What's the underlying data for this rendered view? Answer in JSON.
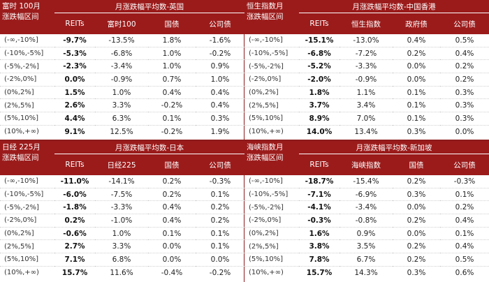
{
  "panels": [
    {
      "title": "月涨跌幅平均数-英国",
      "corner": [
        "富时 100月",
        "涨跌幅区间"
      ],
      "columns": [
        "REITs",
        "富时100",
        "国债",
        "公司债"
      ],
      "rows": [
        [
          "(-∞,-10%]",
          "-9.7%",
          "-13.5%",
          "1.8%",
          "-1.6%"
        ],
        [
          "(-10%,-5%]",
          "-5.3%",
          "-6.8%",
          "1.0%",
          "-0.2%"
        ],
        [
          "(-5%,-2%]",
          "-2.3%",
          "-3.4%",
          "1.0%",
          "0.9%"
        ],
        [
          "(-2%,0%]",
          "0.0%",
          "-0.9%",
          "0.7%",
          "1.0%"
        ],
        [
          "(0%,2%]",
          "1.5%",
          "1.0%",
          "0.4%",
          "0.4%"
        ],
        [
          "(2%,5%]",
          "2.6%",
          "3.3%",
          "-0.2%",
          "0.4%"
        ],
        [
          "(5%,10%]",
          "4.4%",
          "6.3%",
          "0.1%",
          "0.3%"
        ],
        [
          "(10%,+∞)",
          "9.1%",
          "12.5%",
          "-0.2%",
          "1.9%"
        ]
      ]
    },
    {
      "title": "月涨跌幅平均数-中国香港",
      "corner": [
        "恒生指数月",
        "涨跌幅区间"
      ],
      "columns": [
        "REITs",
        "恒生指数",
        "政府债",
        "公司债"
      ],
      "rows": [
        [
          "(-∞,-10%]",
          "-15.1%",
          "-13.0%",
          "0.4%",
          "0.5%"
        ],
        [
          "(-10%,-5%]",
          "-6.8%",
          "-7.2%",
          "0.2%",
          "0.4%"
        ],
        [
          "(-5%,-2%]",
          "-5.2%",
          "-3.3%",
          "0.0%",
          "0.2%"
        ],
        [
          "(-2%,0%]",
          "-2.0%",
          "-0.9%",
          "0.0%",
          "0.2%"
        ],
        [
          "(0%,2%]",
          "1.8%",
          "1.1%",
          "0.1%",
          "0.3%"
        ],
        [
          "(2%,5%]",
          "3.7%",
          "3.4%",
          "0.1%",
          "0.3%"
        ],
        [
          "(5%,10%]",
          "8.9%",
          "7.0%",
          "0.1%",
          "0.3%"
        ],
        [
          "(10%,+∞)",
          "14.0%",
          "13.4%",
          "0.3%",
          "0.0%"
        ]
      ]
    },
    {
      "title": "月涨跌幅平均数-日本",
      "corner": [
        "日经 225月",
        "涨跌幅区间"
      ],
      "columns": [
        "REITs",
        "日经225",
        "国债",
        "公司债"
      ],
      "rows": [
        [
          "(-∞,-10%]",
          "-11.0%",
          "-14.1%",
          "0.2%",
          "-0.3%"
        ],
        [
          "(-10%,-5%]",
          "-6.0%",
          "-7.5%",
          "0.2%",
          "0.1%"
        ],
        [
          "(-5%,-2%]",
          "-1.8%",
          "-3.3%",
          "0.4%",
          "0.2%"
        ],
        [
          "(-2%,0%]",
          "0.2%",
          "-1.0%",
          "0.4%",
          "0.2%"
        ],
        [
          "(0%,2%]",
          "-0.6%",
          "1.0%",
          "0.1%",
          "0.1%"
        ],
        [
          "(2%,5%]",
          "2.7%",
          "3.3%",
          "0.0%",
          "0.1%"
        ],
        [
          "(5%,10%]",
          "7.1%",
          "6.8%",
          "0.0%",
          "0.0%"
        ],
        [
          "(10%,+∞)",
          "15.7%",
          "11.6%",
          "-0.4%",
          "-0.2%"
        ]
      ]
    },
    {
      "title": "月涨跌幅平均数-新加坡",
      "corner": [
        "海峡指数月",
        "涨跌幅区间"
      ],
      "columns": [
        "REITs",
        "海峡指数",
        "国债",
        "公司债"
      ],
      "rows": [
        [
          "(-∞,-10%]",
          "-18.7%",
          "-15.4%",
          "0.2%",
          "-0.3%"
        ],
        [
          "(-10%,-5%]",
          "-7.1%",
          "-6.9%",
          "0.3%",
          "0.1%"
        ],
        [
          "(-5%,-2%]",
          "-4.1%",
          "-3.4%",
          "0.0%",
          "0.2%"
        ],
        [
          "(-2%,0%]",
          "-0.3%",
          "-0.8%",
          "0.2%",
          "0.4%"
        ],
        [
          "(0%,2%]",
          "1.6%",
          "0.9%",
          "0.0%",
          "0.1%"
        ],
        [
          "(2%,5%]",
          "3.8%",
          "3.5%",
          "0.2%",
          "0.4%"
        ],
        [
          "(5%,10%]",
          "7.8%",
          "6.7%",
          "0.2%",
          "0.5%"
        ],
        [
          "(10%,+∞)",
          "15.7%",
          "14.3%",
          "0.3%",
          "0.6%"
        ]
      ]
    }
  ]
}
